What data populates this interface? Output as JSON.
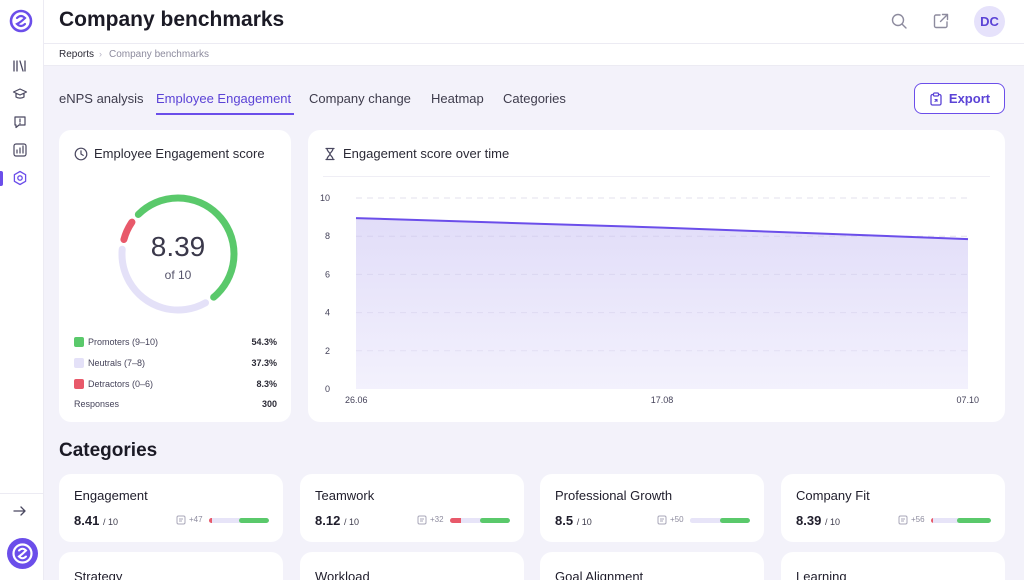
{
  "header": {
    "title": "Company benchmarks",
    "avatar": "DC"
  },
  "breadcrumb": {
    "root": "Reports",
    "separator": "›",
    "current": "Company benchmarks"
  },
  "tabs": [
    {
      "label": "eNPS analysis",
      "active": false
    },
    {
      "label": "Employee Engagement",
      "active": true
    },
    {
      "label": "Company change",
      "active": false
    },
    {
      "label": "Heatmap",
      "active": false
    },
    {
      "label": "Categories",
      "active": false
    }
  ],
  "export_label": "Export",
  "score_card": {
    "title": "Employee Engagement score",
    "value": "8.39",
    "of_label": "of 10",
    "legend": [
      {
        "label": "Promoters (9–10)",
        "value": "54.3%",
        "color": "#5ac96b"
      },
      {
        "label": "Neutrals (7–8)",
        "value": "37.3%",
        "color": "#e4e1f8"
      },
      {
        "label": "Detractors (0–6)",
        "value": "8.3%",
        "color": "#e8596a"
      }
    ],
    "responses_label": "Responses",
    "responses_value": "300",
    "shares": {
      "promoters": 54.3,
      "neutrals": 37.3,
      "detractors": 8.3
    }
  },
  "trend_card": {
    "title": "Engagement score over time"
  },
  "chart_data": {
    "type": "area",
    "title": "Engagement score over time",
    "x": [
      "26.06",
      "17.08",
      "07.10"
    ],
    "x_ticks": [
      "26.06",
      "17.08",
      "07.10"
    ],
    "series": [
      {
        "values": [
          8.95,
          8.45,
          7.85
        ]
      }
    ],
    "y_ticks": [
      "10",
      "8",
      "6",
      "4",
      "2",
      "0"
    ],
    "ylim": [
      0,
      10
    ],
    "grid": true,
    "color": "#6b4eea"
  },
  "categories_title": "Categories",
  "categories": [
    {
      "name": "Engagement",
      "score": "8.41",
      "of": "/ 10",
      "responses": "+47",
      "bar": {
        "detractors": 5,
        "neutrals": 45,
        "promoters": 50
      }
    },
    {
      "name": "Teamwork",
      "score": "8.12",
      "of": "/ 10",
      "responses": "+32",
      "bar": {
        "detractors": 18,
        "neutrals": 32,
        "promoters": 50
      }
    },
    {
      "name": "Professional Growth",
      "score": "8.5",
      "of": "/ 10",
      "responses": "+50",
      "bar": {
        "detractors": 0,
        "neutrals": 50,
        "promoters": 50
      }
    },
    {
      "name": "Company Fit",
      "score": "8.39",
      "of": "/ 10",
      "responses": "+56",
      "bar": {
        "detractors": 4,
        "neutrals": 40,
        "promoters": 56
      }
    }
  ],
  "categories_row2": [
    "Strategy",
    "Workload",
    "Goal Alignment",
    "Learning"
  ]
}
